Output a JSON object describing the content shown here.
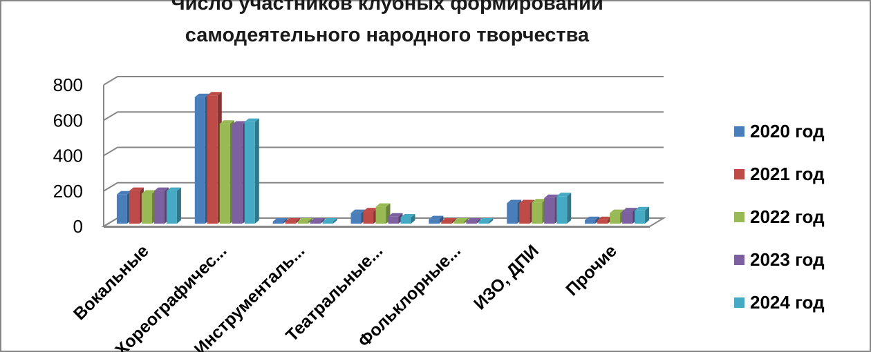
{
  "chart_data": {
    "type": "bar",
    "title_lines": [
      "Число участников клубных формирований",
      "самодеятельного народного творчества"
    ],
    "categories": [
      "Вокальные",
      "Хореографичес...",
      "Инструменталь...",
      "Театральные...",
      "Фольклорные...",
      "ИЗО, ДПИ",
      "Прочие"
    ],
    "series": [
      {
        "name": "2020 год",
        "color": "#4a7ebb",
        "values": [
          165,
          715,
          5,
          60,
          25,
          115,
          20
        ]
      },
      {
        "name": "2021 год",
        "color": "#be4b48",
        "values": [
          185,
          725,
          5,
          70,
          2,
          115,
          20
        ]
      },
      {
        "name": "2022 год",
        "color": "#98b954",
        "values": [
          170,
          565,
          5,
          95,
          2,
          120,
          60
        ]
      },
      {
        "name": "2023 год",
        "color": "#7d60a0",
        "values": [
          185,
          560,
          5,
          40,
          2,
          145,
          70
        ]
      },
      {
        "name": "2024 год",
        "color": "#46aac5",
        "values": [
          185,
          575,
          5,
          35,
          2,
          155,
          75
        ]
      }
    ],
    "yticks": [
      "0",
      "200",
      "400",
      "600",
      "800"
    ],
    "ylim": [
      0,
      800
    ],
    "grid": true,
    "legend_position": "right",
    "style": "3d-clustered-column"
  }
}
